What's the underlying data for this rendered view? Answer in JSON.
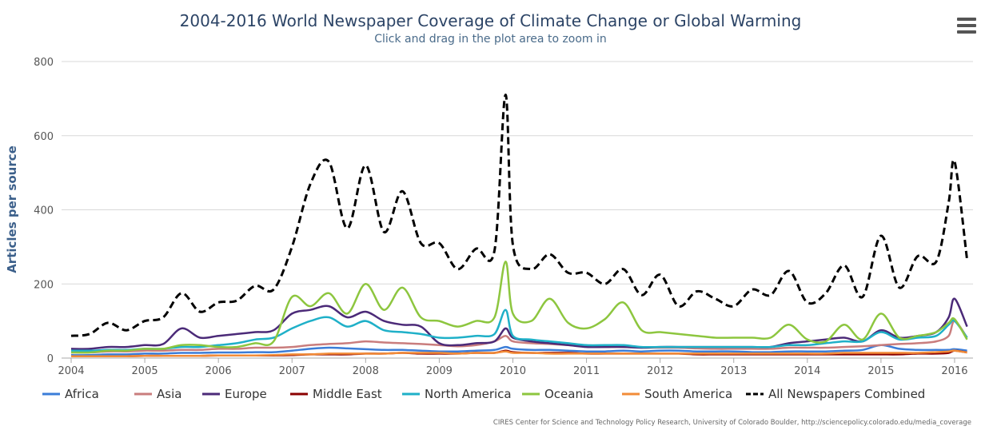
{
  "title": "2004-2016 World Newspaper Coverage of Climate Change or Global Warming",
  "subtitle": "Click and drag in the plot area to zoom in",
  "credits": "CIRES Center for Science and Technology Policy Research, University of Colorado Boulder, http://sciencepolicy.colorado.edu/media_coverage",
  "menu_icon": "hamburger-menu-icon",
  "chart_data": {
    "type": "line",
    "ylabel": "Articles per source",
    "xlabel": "",
    "ylim": [
      0,
      800
    ],
    "xlim": [
      2004,
      2016.25
    ],
    "yticks": [
      "0",
      "200",
      "400",
      "600",
      "800"
    ],
    "xticks": [
      "2004",
      "2005",
      "2006",
      "2007",
      "2008",
      "2009",
      "2010",
      "2011",
      "2012",
      "2013",
      "2014",
      "2015",
      "2016"
    ],
    "grid": true,
    "legend_position": "bottom",
    "x": [
      2004.0,
      2004.25,
      2004.5,
      2004.75,
      2005.0,
      2005.25,
      2005.5,
      2005.75,
      2006.0,
      2006.25,
      2006.5,
      2006.75,
      2007.0,
      2007.25,
      2007.5,
      2007.75,
      2008.0,
      2008.25,
      2008.5,
      2008.75,
      2009.0,
      2009.25,
      2009.5,
      2009.75,
      2009.9,
      2010.0,
      2010.25,
      2010.5,
      2010.75,
      2011.0,
      2011.25,
      2011.5,
      2011.75,
      2012.0,
      2012.25,
      2012.5,
      2012.75,
      2013.0,
      2013.25,
      2013.5,
      2013.75,
      2014.0,
      2014.25,
      2014.5,
      2014.75,
      2015.0,
      2015.25,
      2015.5,
      2015.75,
      2015.92,
      2016.0,
      2016.17
    ],
    "series": [
      {
        "name": "Africa",
        "color": "#3b7dd8",
        "dash": false,
        "values": [
          8,
          8,
          10,
          10,
          12,
          12,
          14,
          14,
          15,
          15,
          16,
          16,
          20,
          25,
          28,
          26,
          24,
          22,
          22,
          20,
          18,
          18,
          20,
          22,
          30,
          25,
          22,
          22,
          20,
          18,
          18,
          20,
          18,
          20,
          20,
          18,
          18,
          18,
          16,
          16,
          18,
          18,
          18,
          20,
          22,
          35,
          25,
          22,
          22,
          22,
          24,
          20
        ]
      },
      {
        "name": "Asia",
        "color": "#c97d7d",
        "dash": false,
        "values": [
          15,
          15,
          18,
          18,
          20,
          20,
          22,
          22,
          25,
          25,
          28,
          28,
          30,
          35,
          38,
          40,
          45,
          42,
          40,
          38,
          35,
          32,
          35,
          45,
          60,
          45,
          40,
          38,
          35,
          32,
          30,
          30,
          28,
          28,
          28,
          26,
          25,
          25,
          25,
          25,
          28,
          28,
          28,
          30,
          32,
          35,
          38,
          40,
          45,
          60,
          100,
          55
        ]
      },
      {
        "name": "Europe",
        "color": "#4b2a78",
        "dash": false,
        "values": [
          25,
          25,
          30,
          30,
          35,
          38,
          80,
          55,
          60,
          65,
          70,
          75,
          120,
          130,
          140,
          110,
          125,
          100,
          90,
          85,
          40,
          35,
          40,
          45,
          80,
          55,
          45,
          40,
          35,
          30,
          30,
          30,
          28,
          30,
          30,
          30,
          30,
          30,
          30,
          30,
          40,
          45,
          50,
          55,
          45,
          75,
          55,
          60,
          70,
          110,
          160,
          85
        ]
      },
      {
        "name": "Middle East",
        "color": "#8b0000",
        "dash": false,
        "values": [
          5,
          5,
          5,
          5,
          6,
          6,
          6,
          6,
          7,
          7,
          7,
          7,
          8,
          10,
          10,
          10,
          12,
          12,
          14,
          12,
          12,
          12,
          14,
          14,
          20,
          16,
          14,
          14,
          14,
          12,
          12,
          12,
          12,
          12,
          12,
          10,
          10,
          10,
          10,
          10,
          10,
          10,
          10,
          10,
          10,
          10,
          10,
          12,
          12,
          14,
          20,
          15
        ]
      },
      {
        "name": "North America",
        "color": "#1fb0c8",
        "dash": false,
        "values": [
          20,
          20,
          22,
          22,
          25,
          25,
          30,
          30,
          35,
          40,
          50,
          55,
          80,
          100,
          110,
          85,
          100,
          75,
          70,
          65,
          55,
          55,
          60,
          65,
          130,
          60,
          50,
          45,
          40,
          35,
          35,
          35,
          30,
          30,
          30,
          30,
          30,
          30,
          30,
          30,
          35,
          35,
          40,
          45,
          45,
          70,
          50,
          55,
          60,
          90,
          100,
          55
        ]
      },
      {
        "name": "Oceania",
        "color": "#8dc63f",
        "dash": false,
        "values": [
          15,
          15,
          20,
          20,
          25,
          25,
          35,
          35,
          30,
          30,
          40,
          45,
          165,
          140,
          175,
          120,
          200,
          130,
          190,
          110,
          100,
          85,
          100,
          110,
          260,
          120,
          100,
          160,
          95,
          80,
          105,
          150,
          75,
          70,
          65,
          60,
          55,
          55,
          55,
          55,
          90,
          50,
          45,
          90,
          50,
          120,
          55,
          60,
          70,
          95,
          105,
          50
        ]
      },
      {
        "name": "South America",
        "color": "#f28c38",
        "dash": false,
        "values": [
          5,
          5,
          5,
          5,
          6,
          6,
          6,
          6,
          7,
          7,
          7,
          8,
          10,
          10,
          12,
          12,
          12,
          12,
          14,
          14,
          14,
          12,
          14,
          14,
          18,
          14,
          14,
          12,
          12,
          12,
          12,
          12,
          12,
          12,
          12,
          12,
          12,
          12,
          12,
          12,
          12,
          12,
          12,
          14,
          14,
          14,
          14,
          14,
          16,
          18,
          20,
          15
        ]
      },
      {
        "name": "All Newspapers Combined",
        "color": "#000000",
        "dash": true,
        "values": [
          60,
          65,
          95,
          75,
          100,
          110,
          175,
          125,
          150,
          155,
          195,
          185,
          300,
          470,
          530,
          350,
          520,
          340,
          450,
          310,
          310,
          240,
          295,
          290,
          710,
          305,
          240,
          280,
          230,
          230,
          200,
          240,
          170,
          225,
          140,
          180,
          160,
          140,
          185,
          170,
          235,
          150,
          175,
          250,
          165,
          330,
          190,
          275,
          260,
          420,
          530,
          265
        ]
      }
    ]
  }
}
